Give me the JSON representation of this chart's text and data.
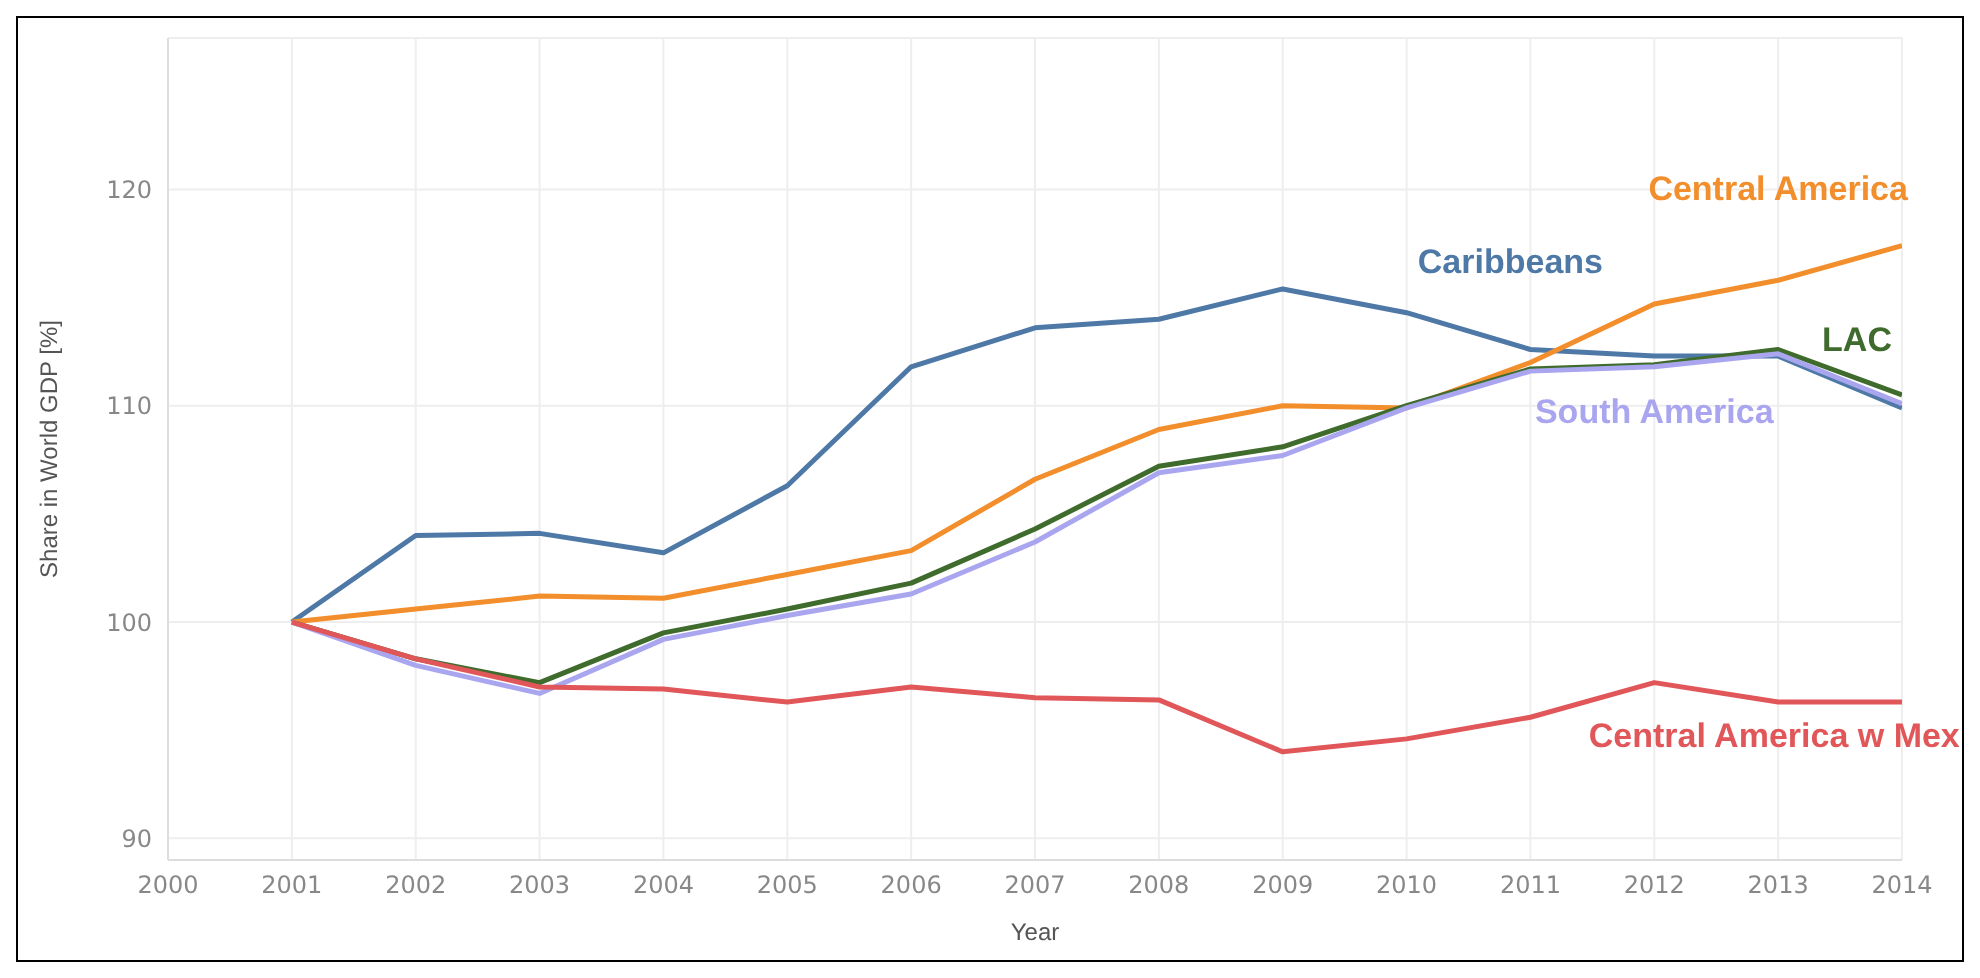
{
  "chart_data": {
    "type": "line",
    "xlabel": "Year",
    "ylabel": "Share in World GDP [%]",
    "x": [
      2001,
      2002,
      2003,
      2004,
      2005,
      2006,
      2007,
      2008,
      2009,
      2010,
      2011,
      2012,
      2013,
      2014
    ],
    "series": [
      {
        "name": "Caribbeans",
        "color": "#4e79a7",
        "values": [
          100,
          104.0,
          104.1,
          103.2,
          106.3,
          111.8,
          113.6,
          114.0,
          115.4,
          114.3,
          112.6,
          112.3,
          112.3,
          109.9
        ]
      },
      {
        "name": "Central America",
        "color": "#f28e2b",
        "values": [
          100,
          100.6,
          101.2,
          101.1,
          102.2,
          103.3,
          106.6,
          108.9,
          110.0,
          109.9,
          112.0,
          114.7,
          115.8,
          117.4
        ]
      },
      {
        "name": "LAC",
        "color": "#3f6b2c",
        "values": [
          100,
          98.3,
          97.2,
          99.5,
          100.6,
          101.8,
          104.3,
          107.2,
          108.1,
          110.0,
          111.7,
          111.9,
          112.6,
          110.5
        ]
      },
      {
        "name": "South America",
        "color": "#a9a6ef",
        "values": [
          100,
          98.0,
          96.7,
          99.2,
          100.3,
          101.3,
          103.7,
          106.9,
          107.7,
          109.9,
          111.6,
          111.8,
          112.4,
          110.1
        ]
      },
      {
        "name": "Central America w Mex",
        "color": "#e15759",
        "values": [
          100,
          98.3,
          97.0,
          96.9,
          96.3,
          97.0,
          96.5,
          96.4,
          94.0,
          94.6,
          95.6,
          97.2,
          96.3,
          96.3
        ]
      }
    ],
    "xlim": [
      2000,
      2014
    ],
    "xticks": [
      2000,
      2001,
      2002,
      2003,
      2004,
      2005,
      2006,
      2007,
      2008,
      2009,
      2010,
      2011,
      2012,
      2013,
      2014
    ],
    "ylim": [
      89,
      127
    ],
    "yticks": [
      90,
      100,
      110,
      120
    ],
    "grid": true,
    "legend": false,
    "marker": "none",
    "line_style": "solid"
  }
}
